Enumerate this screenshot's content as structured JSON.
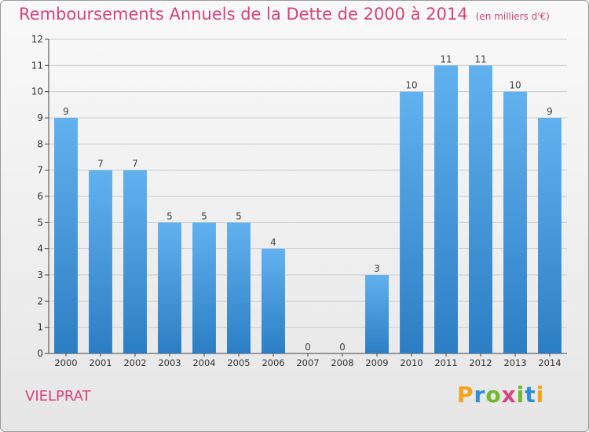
{
  "title": "Remboursements Annuels de la Dette de 2000 à 2014",
  "unit_note": "(en milliers d'€)",
  "commune": "VIELPRAT",
  "logo": {
    "text": "Proxiti",
    "letters": [
      "P",
      "r",
      "o",
      "x",
      "i",
      "t",
      "i"
    ],
    "colors": [
      "#f7a21b",
      "#2c8fd6",
      "#71b82d",
      "#d7437a",
      "#71b82d",
      "#2c8fd6",
      "#f7a21b"
    ]
  },
  "colors": {
    "accent": "#d7437a",
    "bar_light": "#62b1ef",
    "bar_dark": "#2c7ec4",
    "axis": "#444444",
    "grid": "#cccccc"
  },
  "chart_data": {
    "type": "bar",
    "title": "Remboursements Annuels de la Dette de 2000 à 2014",
    "xlabel": "",
    "ylabel": "",
    "categories": [
      "2000",
      "2001",
      "2002",
      "2003",
      "2004",
      "2005",
      "2006",
      "2007",
      "2008",
      "2009",
      "2010",
      "2011",
      "2012",
      "2013",
      "2014"
    ],
    "values": [
      9,
      7,
      7,
      5,
      5,
      5,
      4,
      0,
      0,
      3,
      10,
      11,
      11,
      10,
      9
    ],
    "ylim": [
      0,
      12
    ],
    "yticks": [
      0,
      1,
      2,
      3,
      4,
      5,
      6,
      7,
      8,
      9,
      10,
      11,
      12
    ],
    "grid": true
  }
}
